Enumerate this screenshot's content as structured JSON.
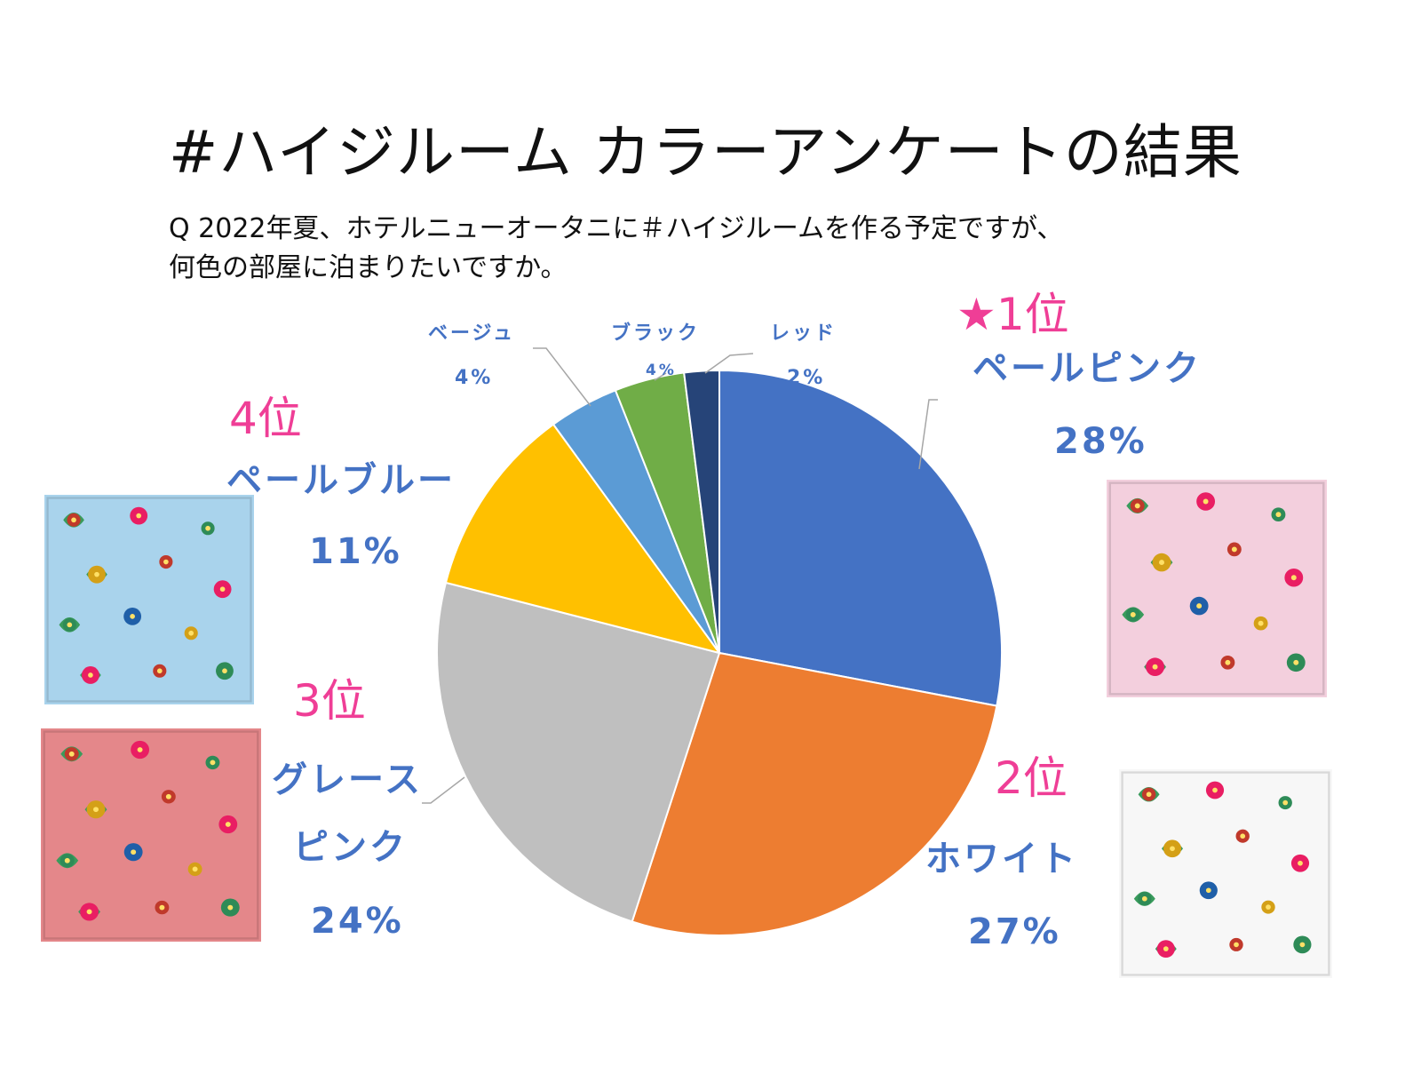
{
  "title": "#ハイジルーム カラーアンケートの結果",
  "question": {
    "line1": "Q 2022年夏、ホテルニューオータニに＃ハイジルームを作る予定ですが、",
    "line2": "何色の部屋に泊まりたいですか。"
  },
  "chart_data": {
    "type": "pie",
    "start_angle": "12 o'clock, clockwise",
    "slices": [
      {
        "label": "ペールピンク",
        "value": 28,
        "display": "28%",
        "color": "#4472c4",
        "rank": "★1位"
      },
      {
        "label": "ホワイト",
        "value": 27,
        "display": "27%",
        "color": "#ed7d31",
        "rank": "2位"
      },
      {
        "label": "グレースピンク",
        "label_lines": [
          "グレース",
          "ピンク"
        ],
        "value": 24,
        "display": "24%",
        "color": "#bfbfbf",
        "rank": "3位"
      },
      {
        "label": "ペールブルー",
        "value": 11,
        "display": "11%",
        "color": "#ffc000",
        "rank": "4位"
      },
      {
        "label": "ベージュ",
        "value": 4,
        "display": "4%",
        "color": "#5b9bd5"
      },
      {
        "label": "ブラック",
        "value": 4,
        "display": "4%",
        "color": "#70ad47"
      },
      {
        "label": "レッド",
        "value": 2,
        "display": "2%",
        "color": "#264478"
      }
    ]
  },
  "towels": [
    {
      "name": "pale-blue",
      "color": "#a9d3ec"
    },
    {
      "name": "grace-pink",
      "color": "#e4878a"
    },
    {
      "name": "pale-pink",
      "color": "#f3cfdd"
    },
    {
      "name": "white",
      "color": "#f7f7f7"
    }
  ]
}
